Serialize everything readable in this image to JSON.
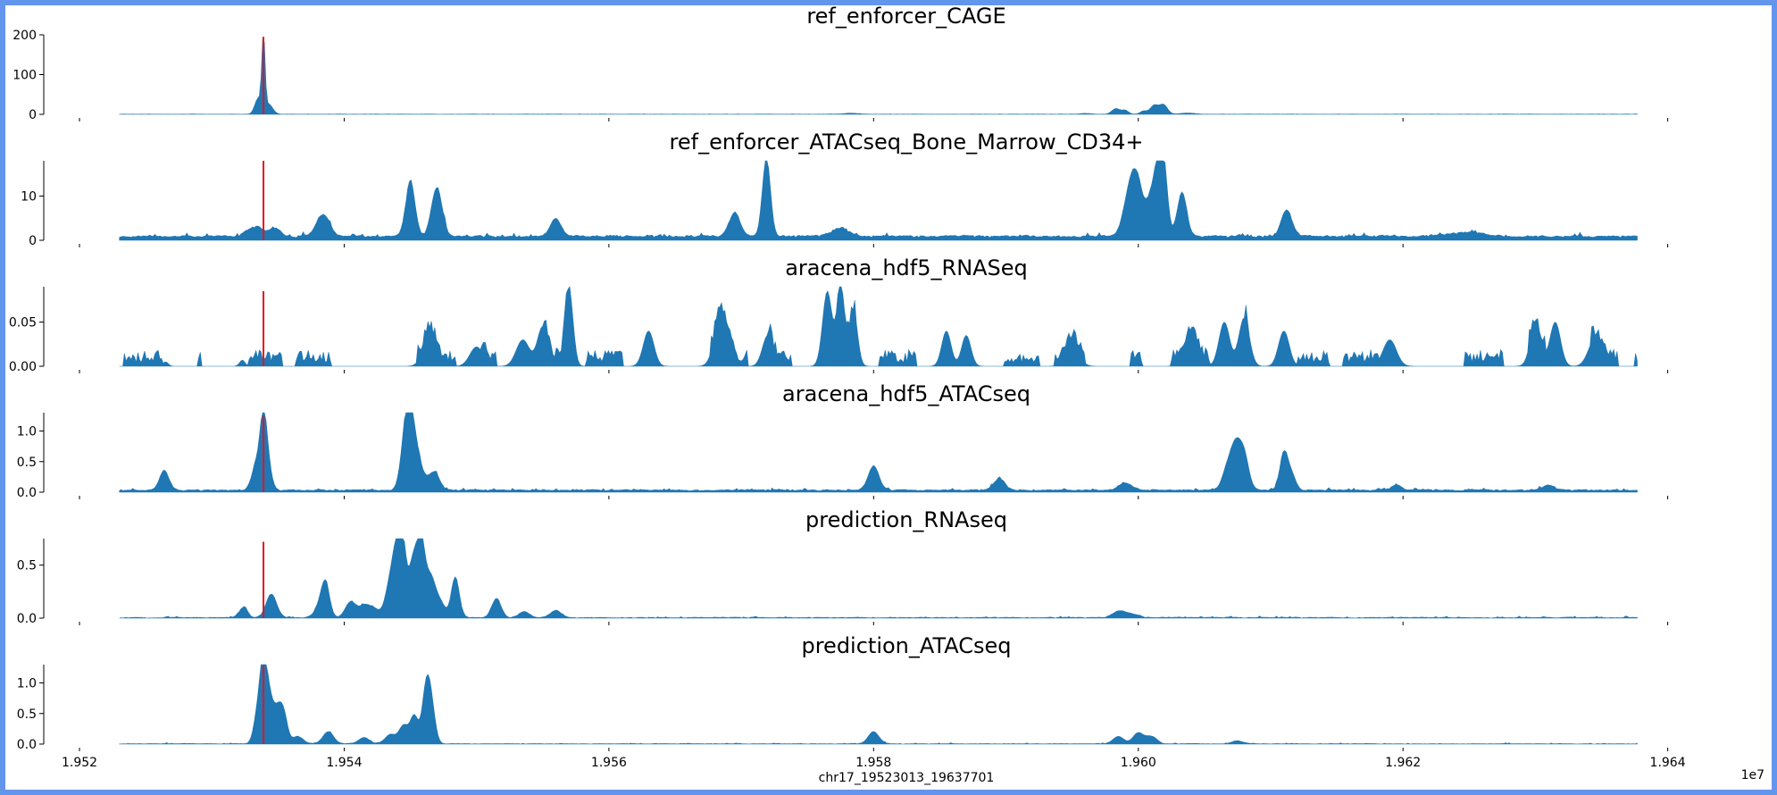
{
  "figure": {
    "xlabel": "chr17_19523013_19637701",
    "x_offset_label": "1e7",
    "x_ticks": [
      "1.952",
      "1.954",
      "1.956",
      "1.958",
      "1.960",
      "1.962",
      "1.964"
    ],
    "x_tick_values": [
      19520000,
      19540000,
      19560000,
      19580000,
      19600000,
      19620000,
      19640000
    ],
    "xlim": [
      19517300,
      19643400
    ],
    "region": [
      19523013,
      19637701
    ],
    "marker_position": 19533900,
    "colors": {
      "fill": "#1f77b4",
      "marker": "#e8141c",
      "background": "#ffffff",
      "border": "#6495ED"
    }
  },
  "chart_data": [
    {
      "type": "area",
      "title": "ref_enforcer_CAGE",
      "ylim": [
        0,
        200
      ],
      "y_ticks": [
        "0",
        "100",
        "200"
      ],
      "y_tick_values": [
        0,
        100,
        200
      ],
      "marker_height": 195,
      "seed": 11,
      "baseline": 0.2,
      "noise": 0.6,
      "series": [
        {
          "x_range": [
            19523013,
            19637701
          ],
          "values": []
        }
      ],
      "peaks": [
        [
          19533900,
          190,
          120
        ],
        [
          19533500,
          40,
          250
        ],
        [
          19534300,
          25,
          300
        ],
        [
          19578300,
          2.5,
          500
        ],
        [
          19596000,
          2,
          400
        ],
        [
          19598300,
          14,
          300
        ],
        [
          19599000,
          10,
          250
        ],
        [
          19600400,
          8,
          250
        ],
        [
          19601200,
          22,
          300
        ],
        [
          19601900,
          24,
          300
        ],
        [
          19603700,
          3,
          500
        ]
      ]
    },
    {
      "type": "area",
      "title": "ref_enforcer_ATACseq_Bone_Marrow_CD34+",
      "ylim": [
        0,
        18
      ],
      "y_ticks": [
        "0",
        "10"
      ],
      "y_tick_values": [
        0,
        10
      ],
      "marker_height": 18,
      "seed": 23,
      "baseline": 0.6,
      "noise": 0.7,
      "series": [
        {
          "x_range": [
            19523013,
            19637701
          ],
          "values": []
        }
      ],
      "peaks": [
        [
          19533300,
          2.2,
          600
        ],
        [
          19534800,
          2.0,
          400
        ],
        [
          19538400,
          5,
          500
        ],
        [
          19545000,
          12.5,
          350
        ],
        [
          19547000,
          11,
          400
        ],
        [
          19556000,
          4,
          400
        ],
        [
          19569500,
          5.5,
          400
        ],
        [
          19571900,
          18,
          300
        ],
        [
          19577500,
          2.0,
          600
        ],
        [
          19599400,
          10,
          500
        ],
        [
          19600000,
          9,
          450
        ],
        [
          19601000,
          8,
          350
        ],
        [
          19601500,
          11,
          300
        ],
        [
          19601900,
          15.5,
          300
        ],
        [
          19603300,
          10,
          350
        ],
        [
          19611200,
          6,
          400
        ],
        [
          19624500,
          0.8,
          1500
        ]
      ]
    },
    {
      "type": "area",
      "title": "aracena_hdf5_RNASeq",
      "ylim": [
        0,
        0.09
      ],
      "y_ticks": [
        "0.00",
        "0.05"
      ],
      "y_tick_values": [
        0,
        0.05
      ],
      "marker_height": 0.085,
      "seed": 37,
      "baseline": 0.0,
      "noise": 0.012,
      "gaps": true,
      "series": [
        {
          "x_range": [
            19523013,
            19637701
          ],
          "values": []
        }
      ],
      "peaks": [
        [
          19526500,
          0.005,
          200
        ],
        [
          19532300,
          0.007,
          200
        ],
        [
          19546500,
          0.035,
          500
        ],
        [
          19550000,
          0.022,
          500
        ],
        [
          19553500,
          0.03,
          500
        ],
        [
          19555000,
          0.045,
          400
        ],
        [
          19557000,
          0.085,
          300
        ],
        [
          19563000,
          0.04,
          400
        ],
        [
          19568500,
          0.055,
          500
        ],
        [
          19572000,
          0.035,
          400
        ],
        [
          19576500,
          0.085,
          350
        ],
        [
          19577500,
          0.085,
          300
        ],
        [
          19578500,
          0.06,
          300
        ],
        [
          19585500,
          0.04,
          350
        ],
        [
          19587000,
          0.035,
          350
        ],
        [
          19595000,
          0.025,
          500
        ],
        [
          19604000,
          0.03,
          500
        ],
        [
          19606500,
          0.05,
          400
        ],
        [
          19608000,
          0.055,
          400
        ],
        [
          19611000,
          0.04,
          400
        ],
        [
          19619000,
          0.03,
          500
        ],
        [
          19630000,
          0.045,
          400
        ],
        [
          19631500,
          0.05,
          400
        ],
        [
          19634500,
          0.03,
          500
        ]
      ]
    },
    {
      "type": "area",
      "title": "aracena_hdf5_ATACseq",
      "ylim": [
        0,
        1.3
      ],
      "y_ticks": [
        "0.0",
        "0.5",
        "1.0"
      ],
      "y_tick_values": [
        0,
        0.5,
        1.0
      ],
      "marker_height": 1.25,
      "seed": 41,
      "baseline": 0.02,
      "noise": 0.03,
      "series": [
        {
          "x_range": [
            19523013,
            19637701
          ],
          "values": []
        }
      ],
      "peaks": [
        [
          19526400,
          0.32,
          350
        ],
        [
          19533400,
          0.45,
          350
        ],
        [
          19533900,
          0.95,
          250
        ],
        [
          19534200,
          0.4,
          300
        ],
        [
          19544800,
          1.25,
          400
        ],
        [
          19545400,
          0.55,
          500
        ],
        [
          19546800,
          0.3,
          400
        ],
        [
          19580000,
          0.4,
          400
        ],
        [
          19589500,
          0.2,
          400
        ],
        [
          19599000,
          0.12,
          500
        ],
        [
          19606800,
          0.4,
          400
        ],
        [
          19607400,
          0.6,
          350
        ],
        [
          19608000,
          0.55,
          350
        ],
        [
          19611000,
          0.62,
          300
        ],
        [
          19611600,
          0.25,
          300
        ],
        [
          19619500,
          0.08,
          400
        ],
        [
          19631000,
          0.08,
          400
        ]
      ]
    },
    {
      "type": "area",
      "title": "prediction_RNAseq",
      "ylim": [
        0,
        0.75
      ],
      "y_ticks": [
        "0.0",
        "0.5"
      ],
      "y_tick_values": [
        0,
        0.5
      ],
      "marker_height": 0.72,
      "seed": 53,
      "baseline": 0.0,
      "noise": 0.012,
      "series": [
        {
          "x_range": [
            19523013,
            19637701
          ],
          "values": []
        }
      ],
      "peaks": [
        [
          19532400,
          0.1,
          300
        ],
        [
          19534500,
          0.22,
          400
        ],
        [
          19538200,
          0.12,
          400
        ],
        [
          19538600,
          0.28,
          300
        ],
        [
          19540500,
          0.15,
          400
        ],
        [
          19541500,
          0.1,
          400
        ],
        [
          19542200,
          0.08,
          400
        ],
        [
          19543500,
          0.3,
          400
        ],
        [
          19544000,
          0.45,
          350
        ],
        [
          19544400,
          0.6,
          300
        ],
        [
          19545200,
          0.5,
          300
        ],
        [
          19545800,
          0.7,
          300
        ],
        [
          19546500,
          0.35,
          350
        ],
        [
          19547200,
          0.15,
          400
        ],
        [
          19548400,
          0.38,
          300
        ],
        [
          19551500,
          0.18,
          350
        ],
        [
          19553600,
          0.06,
          400
        ],
        [
          19556000,
          0.07,
          400
        ],
        [
          19598500,
          0.05,
          500
        ],
        [
          19599400,
          0.03,
          600
        ]
      ]
    },
    {
      "type": "area",
      "title": "prediction_ATACseq",
      "ylim": [
        0,
        1.3
      ],
      "y_ticks": [
        "0.0",
        "0.5",
        "1.0"
      ],
      "y_tick_values": [
        0,
        0.5,
        1.0
      ],
      "marker_height": 1.28,
      "seed": 61,
      "baseline": 0.0,
      "noise": 0.012,
      "series": [
        {
          "x_range": [
            19523013,
            19637701
          ],
          "values": []
        }
      ],
      "peaks": [
        [
          19533500,
          0.55,
          300
        ],
        [
          19533900,
          1.0,
          250
        ],
        [
          19534300,
          0.7,
          300
        ],
        [
          19534900,
          0.45,
          300
        ],
        [
          19535400,
          0.5,
          300
        ],
        [
          19536500,
          0.12,
          400
        ],
        [
          19538800,
          0.2,
          400
        ],
        [
          19541500,
          0.1,
          400
        ],
        [
          19543500,
          0.15,
          400
        ],
        [
          19544500,
          0.3,
          350
        ],
        [
          19545300,
          0.45,
          300
        ],
        [
          19546200,
          0.88,
          300
        ],
        [
          19546600,
          0.5,
          300
        ],
        [
          19580000,
          0.2,
          400
        ],
        [
          19598500,
          0.12,
          400
        ],
        [
          19600000,
          0.18,
          400
        ],
        [
          19601000,
          0.12,
          400
        ],
        [
          19607500,
          0.05,
          400
        ]
      ]
    }
  ]
}
